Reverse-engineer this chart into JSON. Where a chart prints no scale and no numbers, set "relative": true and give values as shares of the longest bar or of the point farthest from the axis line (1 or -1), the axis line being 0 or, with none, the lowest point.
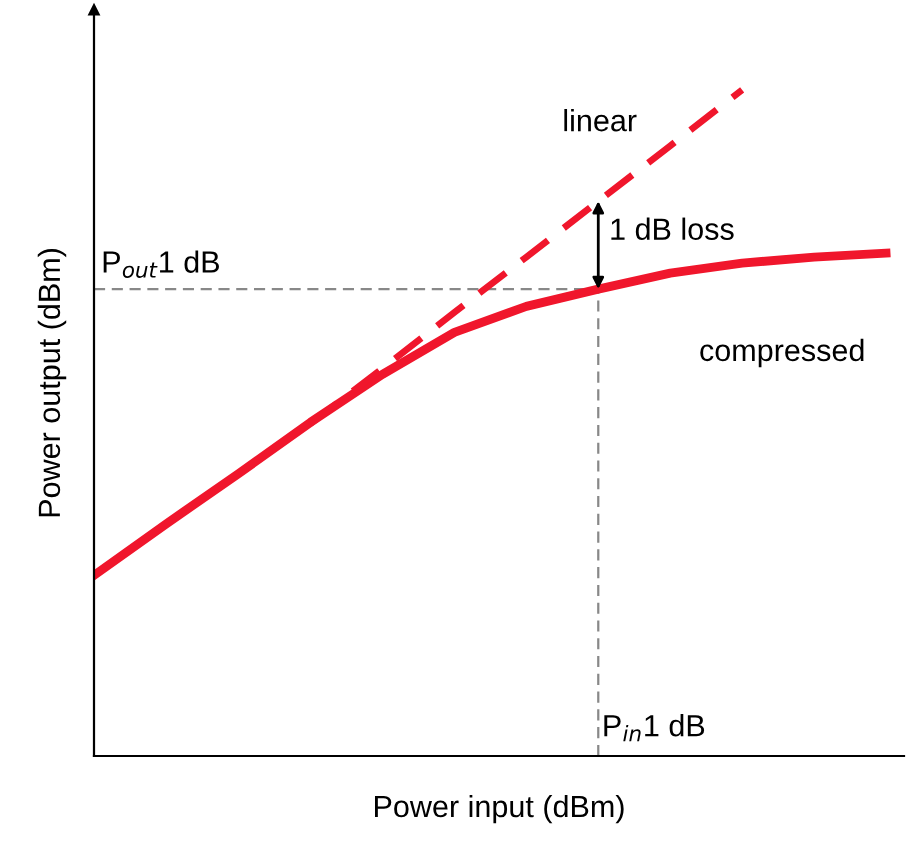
{
  "chart_data": {
    "type": "line",
    "relative": true,
    "xlabel": "Power input (dBm)",
    "ylabel": "Power output (dBm)",
    "categories": [
      null,
      null,
      null,
      null,
      null,
      null,
      null,
      null,
      null,
      null,
      null,
      null
    ],
    "series": [
      {
        "name": "linear",
        "color": "#f0162c",
        "line_style": "dashed",
        "values": [
          null,
          null,
          null,
          0.499,
          0.582,
          0.666,
          0.749,
          0.833,
          0.916,
          1.0,
          null,
          null
        ]
      },
      {
        "name": "compressed",
        "color": "#f0162c",
        "line_style": "solid",
        "values": [
          0.272,
          0.349,
          0.424,
          0.501,
          0.573,
          0.636,
          0.675,
          0.701,
          0.725,
          0.74,
          0.749,
          0.755
        ]
      }
    ],
    "ref_lines": [
      {
        "axis": "y",
        "value": 0.701,
        "label": "P$_{out}$1 dB",
        "color": "#888888",
        "line_style": "dashed"
      }
    ],
    "annotations": [
      "1 dB loss",
      "P$_{in}$1 dB"
    ],
    "legend": false
  }
}
